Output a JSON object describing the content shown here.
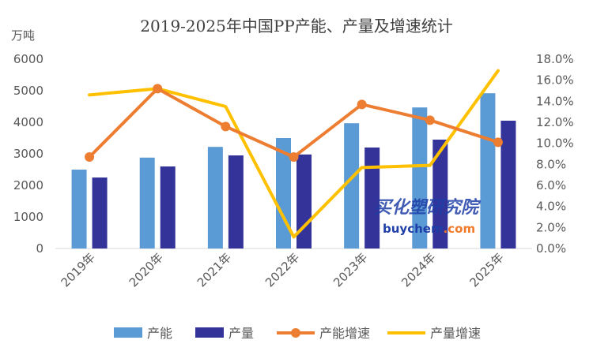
{
  "chart_data": {
    "type": "bar",
    "title": "2019-2025年中国PP产能、产量及增速统计",
    "ylabel": "万吨",
    "categories": [
      "2019年",
      "2020年",
      "2021年",
      "2022年",
      "2023年",
      "2024年",
      "2025年"
    ],
    "ylim": [
      0,
      6000
    ],
    "yticks": [
      "0",
      "1000",
      "2000",
      "3000",
      "4000",
      "5000",
      "6000"
    ],
    "y2lim": [
      0,
      18
    ],
    "y2ticks": [
      "0.0%",
      "2.0%",
      "4.0%",
      "6.0%",
      "8.0%",
      "10.0%",
      "12.0%",
      "14.0%",
      "16.0%",
      "18.0%"
    ],
    "series": [
      {
        "name": "产能",
        "kind": "bar",
        "axis": "left",
        "color": "#5b9bd5",
        "values": [
          2500,
          2880,
          3220,
          3500,
          3970,
          4470,
          4920
        ]
      },
      {
        "name": "产量",
        "kind": "bar",
        "axis": "left",
        "color": "#333399",
        "values": [
          2250,
          2600,
          2950,
          2980,
          3200,
          3450,
          4050
        ]
      },
      {
        "name": "产能增速",
        "kind": "line-marker",
        "axis": "right",
        "color": "#ed7d31",
        "values": [
          8.7,
          15.2,
          11.6,
          8.7,
          13.7,
          12.2,
          10.1
        ]
      },
      {
        "name": "产量增速",
        "kind": "line",
        "axis": "right",
        "color": "#ffc000",
        "values": [
          14.6,
          15.2,
          13.5,
          1.1,
          7.7,
          7.9,
          16.9
        ]
      }
    ],
    "legend": "bottom"
  },
  "watermark": {
    "line1": "买化塑研究院",
    "line2_part1": "buychem",
    "line2_part2": ".com",
    "color1": "#1f3fa8",
    "color2": "#f07b2a"
  }
}
